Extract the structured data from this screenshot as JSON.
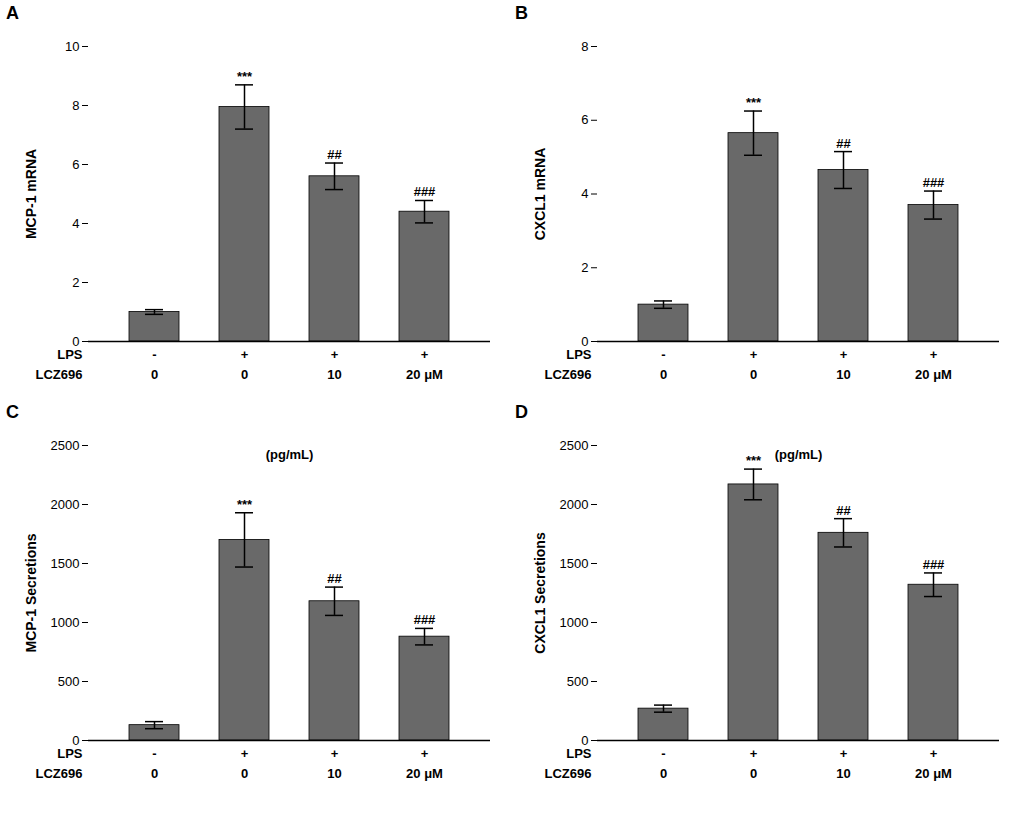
{
  "chart_data": [
    {
      "type": "bar",
      "title": "A",
      "ylabel": "MCP-1 mRNA",
      "color": "#696969",
      "ylim": [
        0,
        10
      ],
      "yticks": [
        0,
        2,
        4,
        6,
        8,
        10
      ],
      "values": [
        1.0,
        7.95,
        5.6,
        4.4
      ],
      "errors": [
        0.08,
        0.75,
        0.45,
        0.38
      ],
      "annotations": [
        null,
        "***",
        "##",
        "###"
      ],
      "category_rows": [
        {
          "name": "LPS",
          "labels": [
            "-",
            "+",
            "+",
            "+"
          ]
        },
        {
          "name": "LCZ696",
          "labels": [
            "0",
            "0",
            "10",
            "20 μM"
          ]
        }
      ]
    },
    {
      "type": "bar",
      "title": "B",
      "ylabel": "CXCL1 mRNA",
      "color": "#696969",
      "ylim": [
        0,
        8
      ],
      "yticks": [
        0,
        2,
        4,
        6,
        8
      ],
      "values": [
        1.0,
        5.65,
        4.65,
        3.7
      ],
      "errors": [
        0.1,
        0.6,
        0.5,
        0.38
      ],
      "annotations": [
        null,
        "***",
        "##",
        "###"
      ],
      "category_rows": [
        {
          "name": "LPS",
          "labels": [
            "-",
            "+",
            "+",
            "+"
          ]
        },
        {
          "name": "LCZ696",
          "labels": [
            "0",
            "0",
            "10",
            "20 μM"
          ]
        }
      ]
    },
    {
      "type": "bar",
      "title": "C",
      "ylabel": "MCP-1 Secretions",
      "unit_note": "(pg/mL)",
      "color": "#696969",
      "ylim": [
        0,
        2500
      ],
      "yticks": [
        0,
        500,
        1000,
        1500,
        2000,
        2500
      ],
      "values": [
        130,
        1700,
        1180,
        880
      ],
      "errors": [
        30,
        230,
        120,
        70
      ],
      "annotations": [
        null,
        "***",
        "##",
        "###"
      ],
      "category_rows": [
        {
          "name": "LPS",
          "labels": [
            "-",
            "+",
            "+",
            "+"
          ]
        },
        {
          "name": "LCZ696",
          "labels": [
            "0",
            "0",
            "10",
            "20 μM"
          ]
        }
      ]
    },
    {
      "type": "bar",
      "title": "D",
      "ylabel": "CXCL1 Secretions",
      "unit_note": "(pg/mL)",
      "color": "#696969",
      "ylim": [
        0,
        2500
      ],
      "yticks": [
        0,
        500,
        1000,
        1500,
        2000,
        2500
      ],
      "values": [
        270,
        2170,
        1760,
        1320
      ],
      "errors": [
        30,
        130,
        120,
        100
      ],
      "annotations": [
        null,
        "***",
        "##",
        "###"
      ],
      "category_rows": [
        {
          "name": "LPS",
          "labels": [
            "-",
            "+",
            "+",
            "+"
          ]
        },
        {
          "name": "LCZ696",
          "labels": [
            "0",
            "0",
            "10",
            "20 μM"
          ]
        }
      ]
    }
  ]
}
